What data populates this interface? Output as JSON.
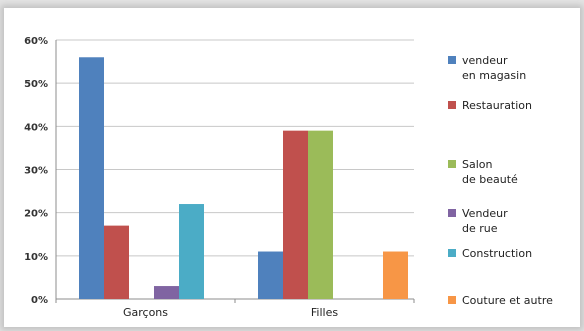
{
  "chart_data": {
    "type": "bar",
    "categories": [
      "Garçons",
      "Filles"
    ],
    "ylim": [
      0,
      60
    ],
    "ytick_labels": [
      "0%",
      "10%",
      "20%",
      "30%",
      "40%",
      "50%",
      "60%"
    ],
    "ytick_values": [
      0,
      10,
      20,
      30,
      40,
      50,
      60
    ],
    "grid": true,
    "legend_position": "right",
    "series": [
      {
        "name_lines": [
          "vendeur",
          "en magasin"
        ],
        "color": "#4f81bd",
        "values": [
          56,
          11
        ]
      },
      {
        "name_lines": [
          "Restauration"
        ],
        "color": "#c0504d",
        "values": [
          17,
          39
        ]
      },
      {
        "name_lines": [
          "Salon",
          "de beauté"
        ],
        "color": "#9bbb59",
        "values": [
          0,
          39
        ]
      },
      {
        "name_lines": [
          "Vendeur",
          "de rue"
        ],
        "color": "#8064a2",
        "values": [
          3,
          0
        ]
      },
      {
        "name_lines": [
          "Construction"
        ],
        "color": "#4bacc6",
        "values": [
          22,
          0
        ]
      },
      {
        "name_lines": [
          "Couture et autre"
        ],
        "color": "#f79646",
        "values": [
          0,
          11
        ]
      }
    ]
  }
}
